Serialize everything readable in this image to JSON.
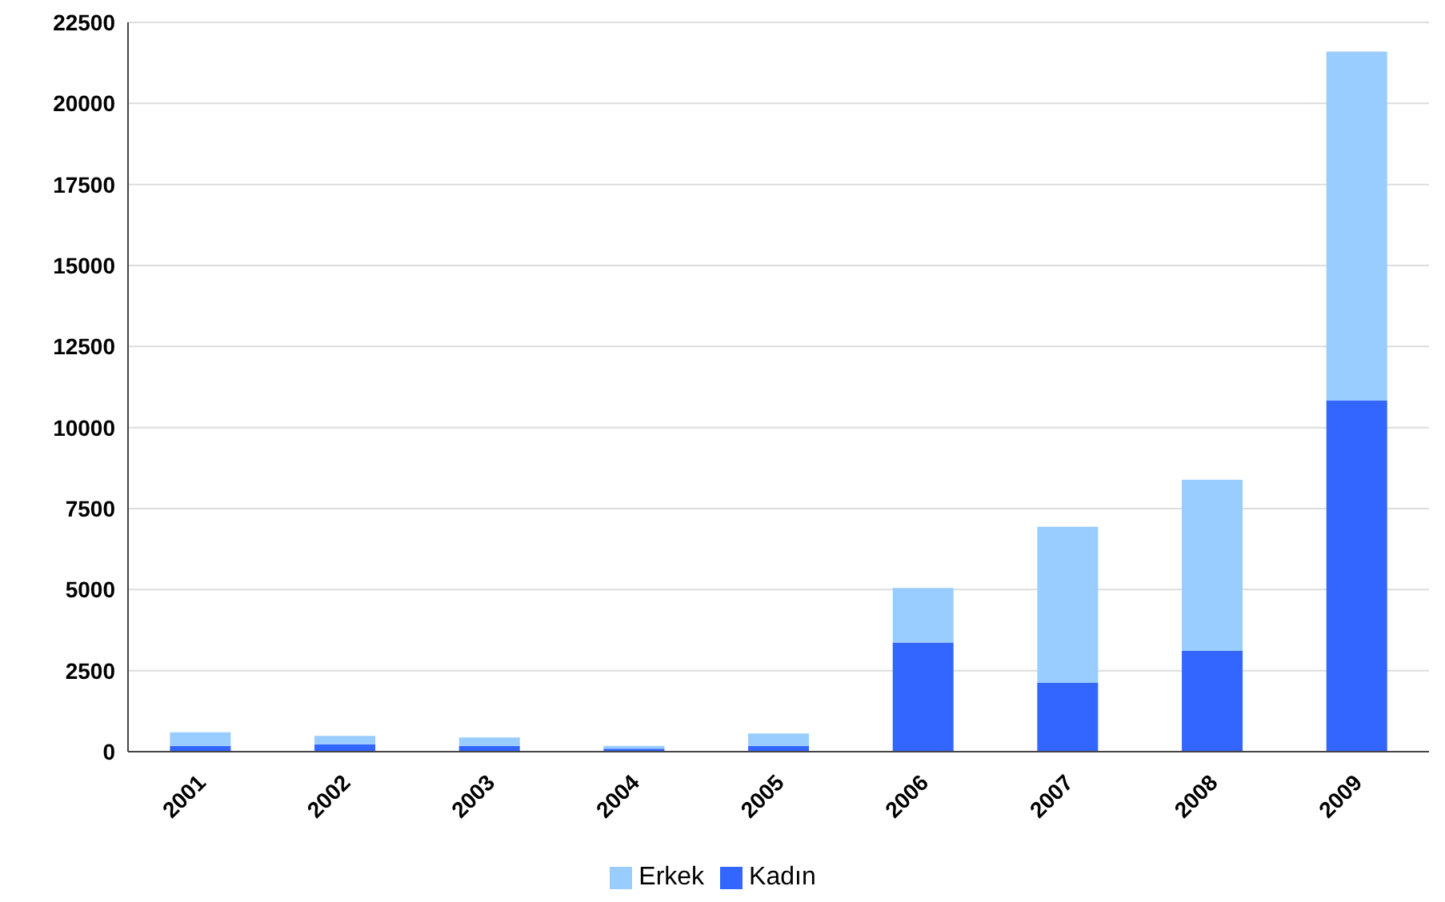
{
  "chart_data": {
    "type": "bar",
    "stacked": true,
    "categories": [
      "2001",
      "2002",
      "2003",
      "2004",
      "2005",
      "2006",
      "2007",
      "2008",
      "2009"
    ],
    "series": [
      {
        "name": "Kadın",
        "color": "#3366ff",
        "values": [
          180,
          230,
          180,
          90,
          180,
          3370,
          2120,
          3110,
          10830
        ]
      },
      {
        "name": "Erkek",
        "color": "#99ccff",
        "values": [
          420,
          260,
          260,
          90,
          380,
          1680,
          4820,
          5280,
          10770
        ]
      }
    ],
    "ylim": [
      0,
      22500
    ],
    "yticks": [
      0,
      2500,
      5000,
      7500,
      10000,
      12500,
      15000,
      17500,
      20000,
      22500
    ],
    "grid": "y",
    "legend": "bottom"
  }
}
